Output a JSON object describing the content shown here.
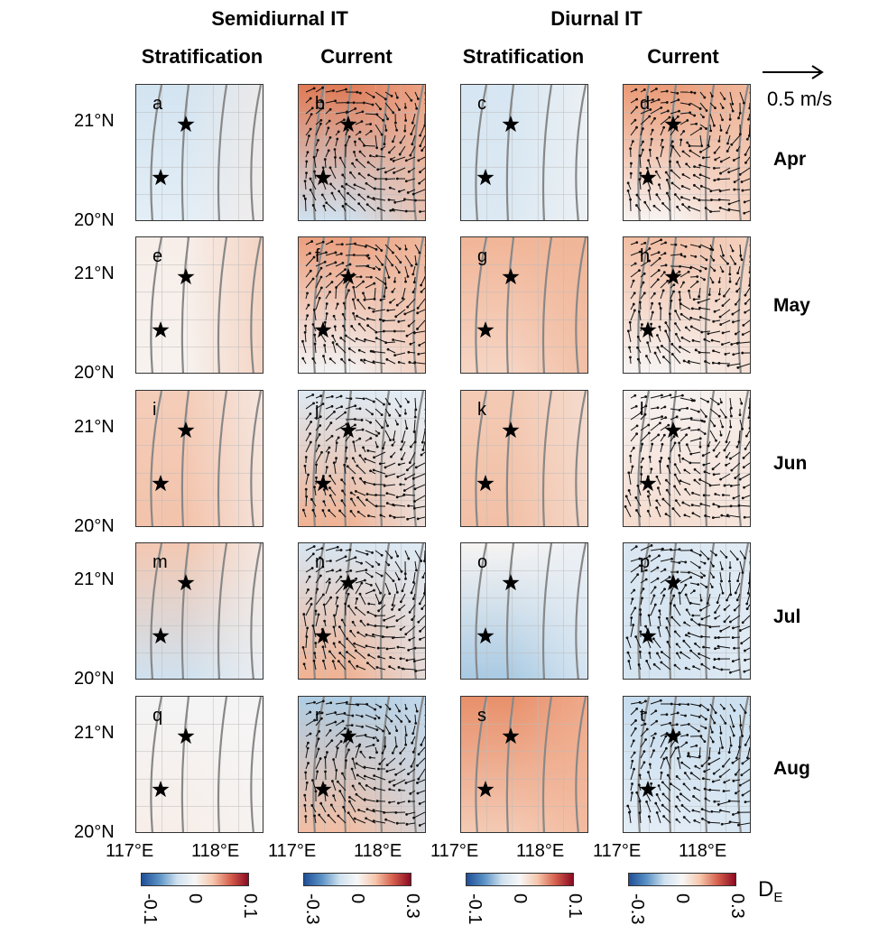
{
  "headers": {
    "semidiurnal": "Semidiurnal IT",
    "diurnal": "Diurnal IT",
    "columns": [
      "Stratification",
      "Current",
      "Stratification",
      "Current"
    ]
  },
  "months": [
    "Apr",
    "May",
    "Jun",
    "Jul",
    "Aug"
  ],
  "y_ticks": [
    "21°N",
    "20°N"
  ],
  "x_ticks": [
    "117°E",
    "118°E"
  ],
  "scale_label": "0.5 m/s",
  "colorbar_label": "D",
  "colorbar_sub": "E",
  "colorbars": [
    [
      "-0.1",
      "0",
      "0.1"
    ],
    [
      "-0.3",
      "0",
      "0.3"
    ],
    [
      "-0.1",
      "0",
      "0.1"
    ],
    [
      "-0.3",
      "0",
      "0.3"
    ]
  ],
  "chart_data": {
    "type": "heatmap",
    "description_labels": "panels a–t",
    "panels": [
      {
        "letter": "a",
        "top": "#d3e4f1",
        "bottom": "#e3eef6",
        "right": "#f6ebe6",
        "arrows": false
      },
      {
        "letter": "b",
        "top": "#e07a55",
        "bottom": "#cfe1ef",
        "right": "#f2b59a",
        "arrows": true
      },
      {
        "letter": "c",
        "top": "#d6e6f2",
        "bottom": "#dce9f3",
        "right": "#f4f4f4",
        "arrows": false
      },
      {
        "letter": "d",
        "top": "#ea9a76",
        "bottom": "#f8f3f1",
        "right": "#f3c6ae",
        "arrows": true
      },
      {
        "letter": "e",
        "top": "#f7eee9",
        "bottom": "#f7f2ef",
        "right": "#f3c9b3",
        "arrows": false
      },
      {
        "letter": "f",
        "top": "#ec9f7e",
        "bottom": "#f3f3f5",
        "right": "#f1c1a8",
        "arrows": true
      },
      {
        "letter": "g",
        "top": "#f1b597",
        "bottom": "#f6d5c4",
        "right": "#f0b699",
        "arrows": false
      },
      {
        "letter": "h",
        "top": "#f2bda3",
        "bottom": "#f7f4f3",
        "right": "#f5d9ca",
        "arrows": true
      },
      {
        "letter": "i",
        "top": "#f4cdb9",
        "bottom": "#f3c3ab",
        "right": "#f6f0ed",
        "arrows": false
      },
      {
        "letter": "j",
        "top": "#dde9f3",
        "bottom": "#f0b293",
        "right": "#e9f0f6",
        "arrows": true
      },
      {
        "letter": "k",
        "top": "#f4cab4",
        "bottom": "#f2c0a6",
        "right": "#f5e2d8",
        "arrows": false
      },
      {
        "letter": "l",
        "top": "#f6f2f1",
        "bottom": "#f5dccf",
        "right": "#f6eae3",
        "arrows": true
      },
      {
        "letter": "m",
        "top": "#f3c8b2",
        "bottom": "#cfe1ef",
        "right": "#f5f4f4",
        "arrows": false
      },
      {
        "letter": "n",
        "top": "#d7e6f2",
        "bottom": "#f0b293",
        "right": "#e2ecf5",
        "arrows": true
      },
      {
        "letter": "o",
        "top": "#f6f4f3",
        "bottom": "#a9cae3",
        "right": "#e8eff6",
        "arrows": false
      },
      {
        "letter": "p",
        "top": "#dae7f2",
        "bottom": "#d4e4f1",
        "right": "#e4edf5",
        "arrows": true
      },
      {
        "letter": "q",
        "top": "#f4f4f5",
        "bottom": "#f7eee9",
        "right": "#f6f5f5",
        "arrows": false
      },
      {
        "letter": "r",
        "top": "#aecde4",
        "bottom": "#f2bea4",
        "right": "#c9ddee",
        "arrows": true
      },
      {
        "letter": "s",
        "top": "#e8906b",
        "bottom": "#f4cab4",
        "right": "#f2b598",
        "arrows": false
      },
      {
        "letter": "t",
        "top": "#c6dcee",
        "bottom": "#e3edf6",
        "right": "#d1e3f0",
        "arrows": true
      }
    ],
    "xlim": [
      "117°E",
      "118°E"
    ],
    "ylim": [
      "20°N",
      "21°N"
    ],
    "colorbar_ranges": [
      [
        -0.1,
        0.1
      ],
      [
        -0.3,
        0.3
      ],
      [
        -0.1,
        0.1
      ],
      [
        -0.3,
        0.3
      ]
    ]
  }
}
